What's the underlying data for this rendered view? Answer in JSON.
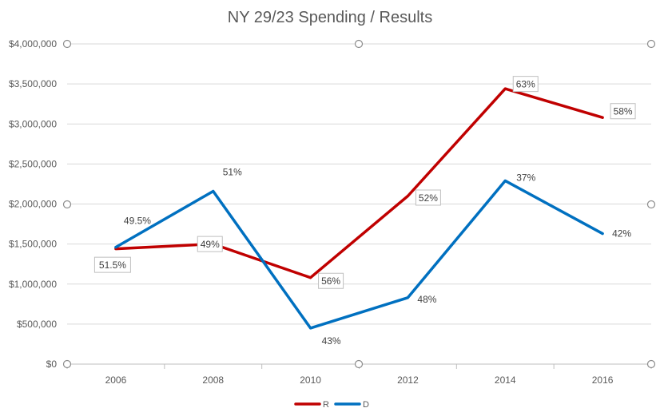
{
  "chart_data": {
    "type": "line",
    "title": "NY 29/23 Spending / Results",
    "xlabel": "",
    "ylabel": "",
    "categories": [
      "2006",
      "2008",
      "2010",
      "2012",
      "2014",
      "2016"
    ],
    "ylim": [
      0,
      4000000
    ],
    "y_ticks": [
      "$0",
      "$500,000",
      "$1,000,000",
      "$1,500,000",
      "$2,000,000",
      "$2,500,000",
      "$3,000,000",
      "$3,500,000",
      "$4,000,000"
    ],
    "grid": true,
    "legend_position": "bottom",
    "series": [
      {
        "name": "R",
        "color": "#C00000",
        "values": [
          1440000,
          1500000,
          1080000,
          2100000,
          3440000,
          3080000
        ],
        "labels": [
          "51.5%",
          "49%",
          "56%",
          "52%",
          "63%",
          "58%"
        ]
      },
      {
        "name": "D",
        "color": "#0070C0",
        "values": [
          1460000,
          2160000,
          450000,
          830000,
          2290000,
          1630000
        ],
        "labels": [
          "49.5%",
          "51%",
          "43%",
          "48%",
          "37%",
          "42%"
        ]
      }
    ]
  }
}
